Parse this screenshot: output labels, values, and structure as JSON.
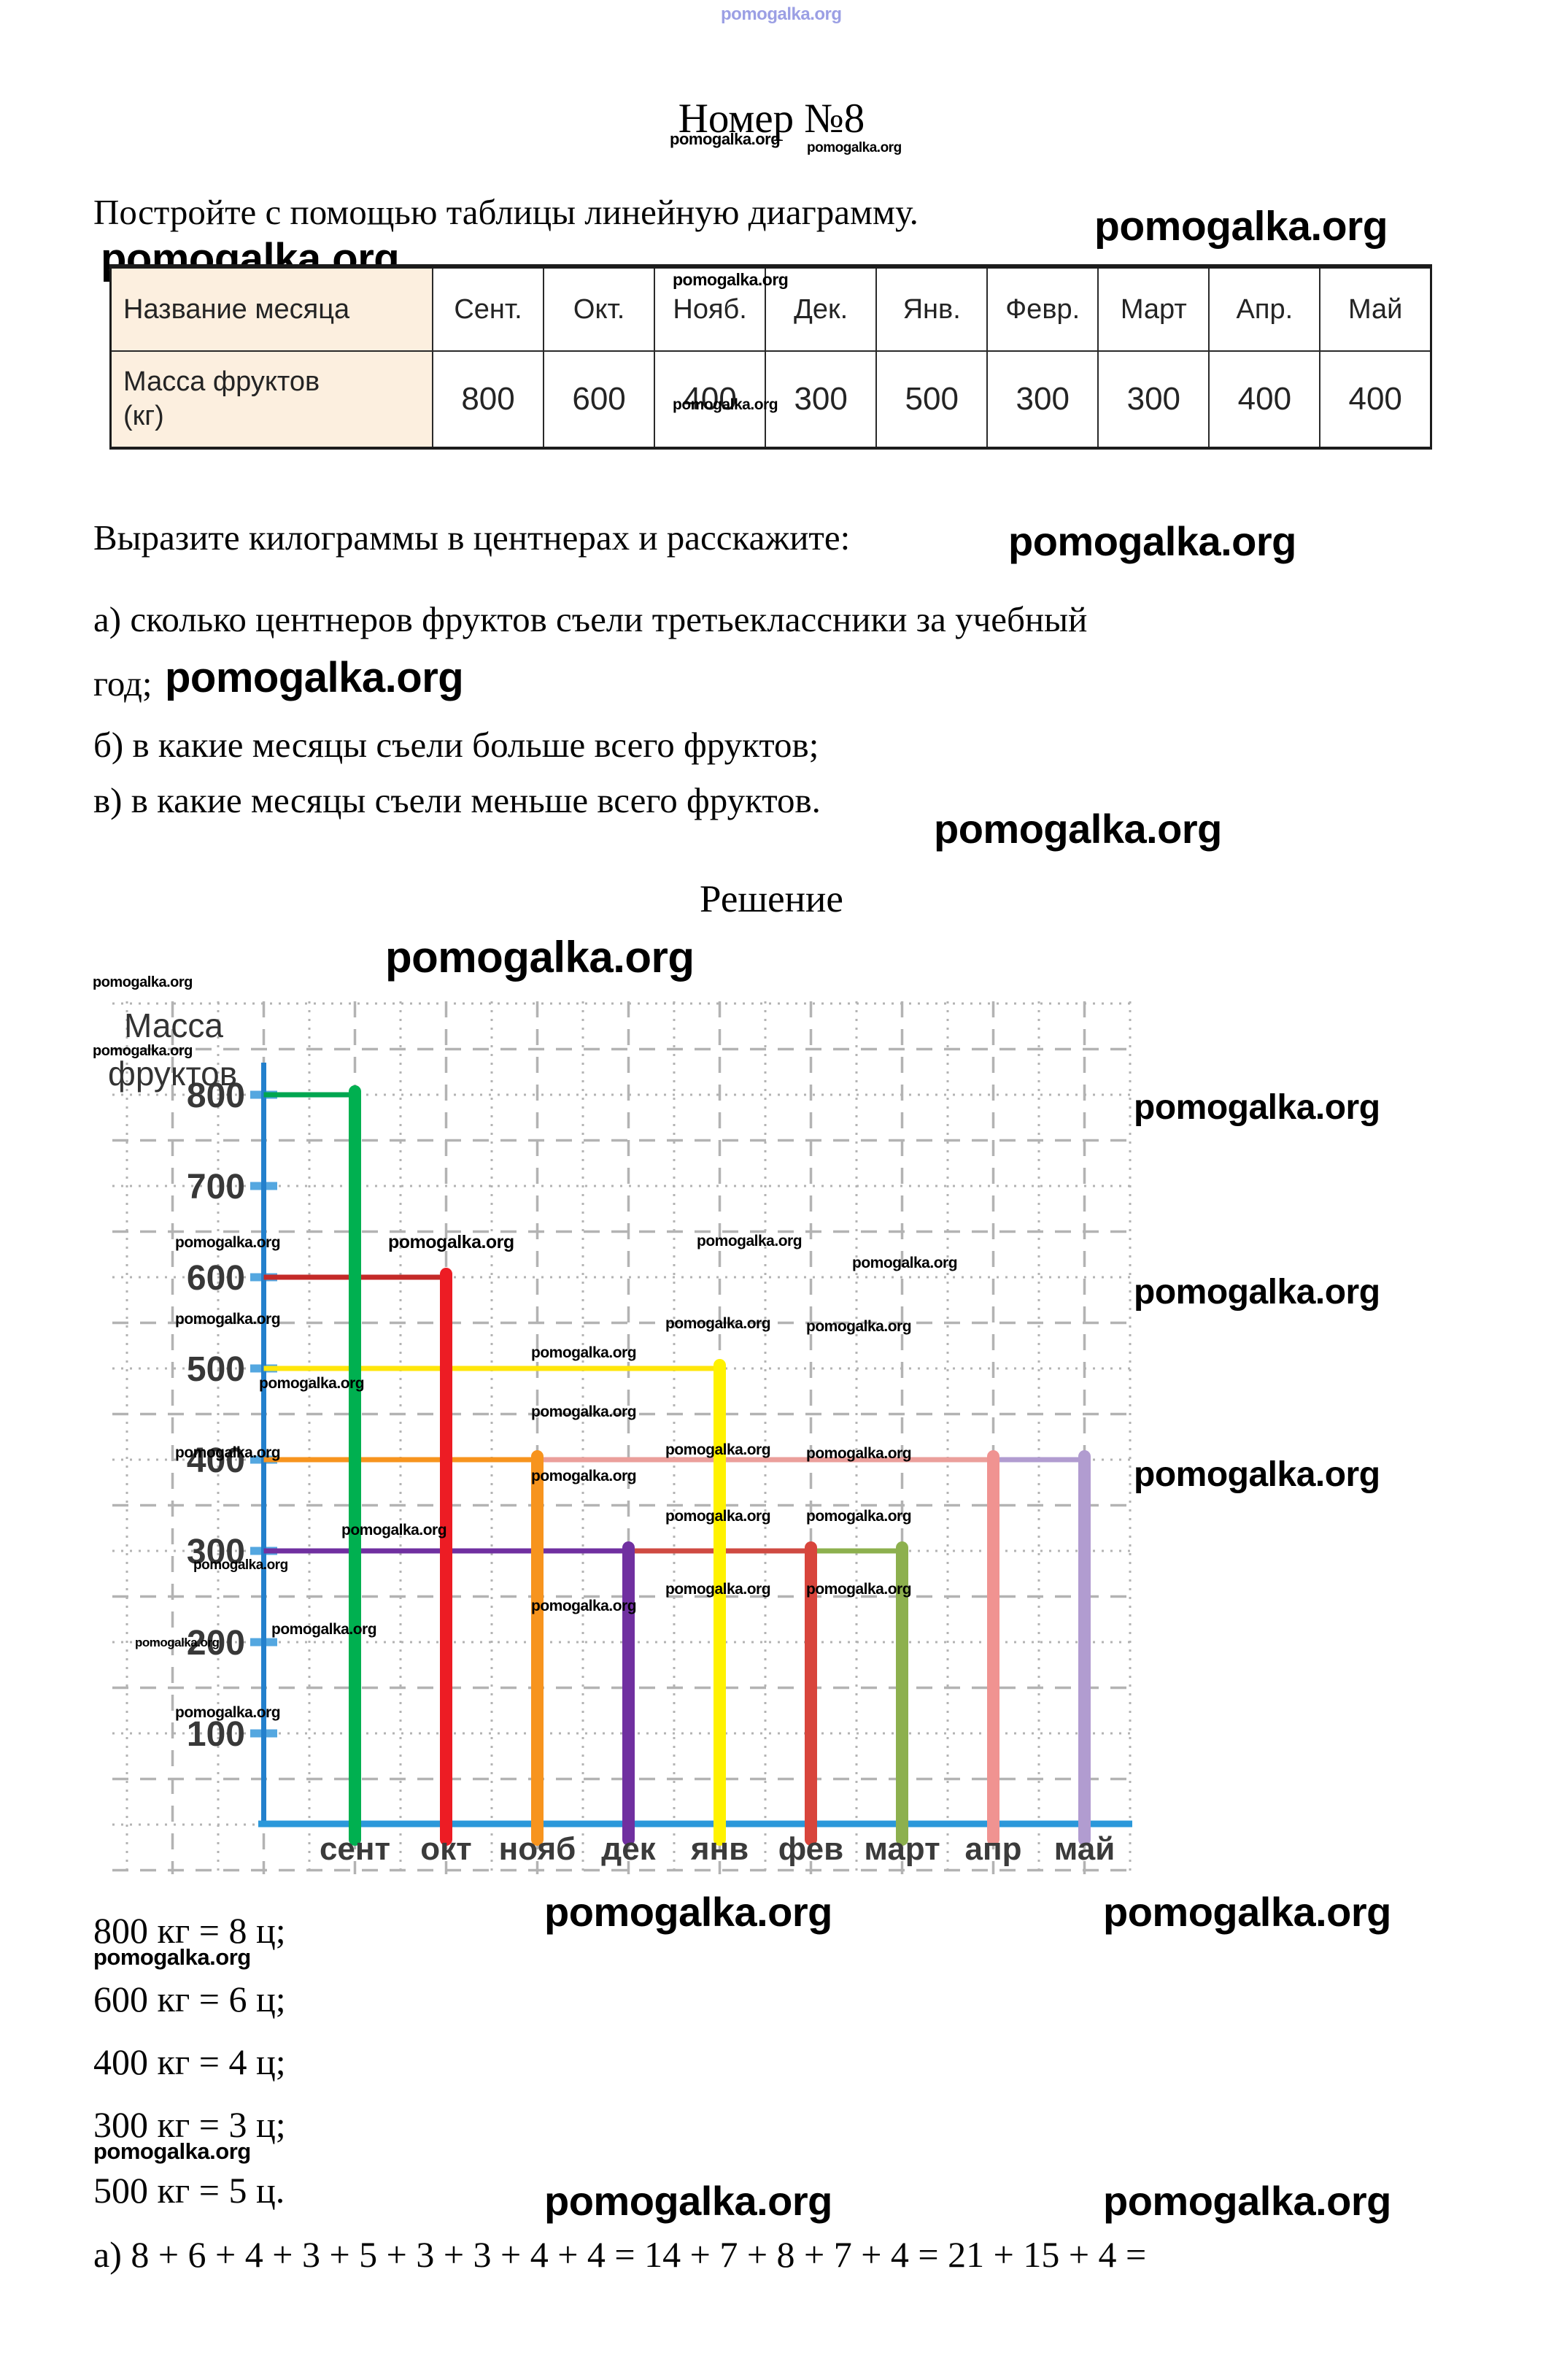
{
  "watermark": {
    "text": "pomogalka.org"
  },
  "header": {
    "title": "Номер №8"
  },
  "problem": {
    "intro": "Постройте с помощью таблицы линейную диаграмму.",
    "express": "Выразите килограммы в центнерах и расскажите:",
    "item_a": "а) сколько центнеров фруктов съели третьеклассники за учебный",
    "item_a_tail": "год;",
    "item_b": "б) в какие месяцы съели больше всего фруктов;",
    "item_v": "в) в какие месяцы съели меньше всего фруктов."
  },
  "table": {
    "header_col1": "Название месяца",
    "mass_label_line1": "Масса фруктов",
    "mass_label_line2": "(кг)",
    "months": [
      "Сент.",
      "Окт.",
      "Нояб.",
      "Дек.",
      "Янв.",
      "Февр.",
      "Март",
      "Апр.",
      "Май"
    ],
    "values": [
      "800",
      "600",
      "400",
      "300",
      "500",
      "300",
      "300",
      "400",
      "400"
    ]
  },
  "solution": {
    "heading": "Решение"
  },
  "chart_data": {
    "type": "bar",
    "title": "Масса фруктов",
    "ylabel_line1": "Масса",
    "ylabel_line2": "фруктов",
    "xlabel": "",
    "categories": [
      "сент",
      "окт",
      "нояб",
      "дек",
      "янв",
      "фев",
      "март",
      "апр",
      "май"
    ],
    "values": [
      800,
      600,
      400,
      300,
      500,
      300,
      300,
      400,
      400
    ],
    "yticks": [
      100,
      200,
      300,
      400,
      500,
      600,
      700,
      800
    ],
    "ylim": [
      0,
      900
    ],
    "grid": true,
    "legend": false,
    "bar_colors": [
      "#00b050",
      "#ed1c24",
      "#f7941e",
      "#7030a0",
      "#fff200",
      "#d8453c",
      "#8db04e",
      "#f09391",
      "#b19cd0"
    ],
    "line_colors": [
      "#00a650",
      "#c42a28",
      "#f7941e",
      "#7030a0",
      "#ffe60a",
      "#cf4a42",
      "#8db04e",
      "#eb9f9b",
      "#b19cd0"
    ],
    "axis_color": "#2380cc",
    "xaxis_color": "#2b98da",
    "tick_color": "#54a7e0",
    "grid_color": "#b3b3b3"
  },
  "conversions": [
    "800 кг = 8 ц;",
    "600 кг = 6 ц;",
    "400 кг = 4 ц;",
    "300 кг = 3 ц;",
    "500 кг = 5 ц."
  ],
  "answer_a": "а) 8 + 6 + 4 + 3 + 5 + 3 + 3 + 4 + 4 = 14 + 7 + 8 + 7 + 4 = 21 + 15 + 4 ="
}
